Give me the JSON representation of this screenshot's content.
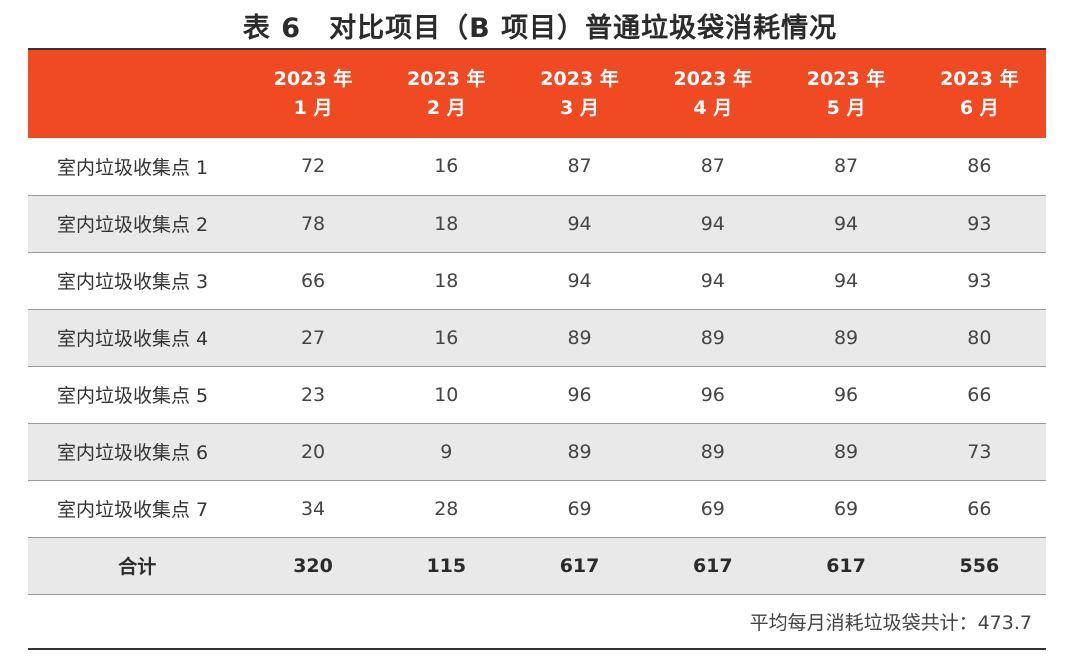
{
  "chart_data": {
    "type": "table",
    "title": "表 6　对比项目（B 项目）普通垃圾袋消耗情况",
    "columns": [
      {
        "year": "2023 年",
        "month": "1 月"
      },
      {
        "year": "2023 年",
        "month": "2 月"
      },
      {
        "year": "2023 年",
        "month": "3 月"
      },
      {
        "year": "2023 年",
        "month": "4 月"
      },
      {
        "year": "2023 年",
        "month": "5 月"
      },
      {
        "year": "2023 年",
        "month": "6 月"
      }
    ],
    "rows": [
      {
        "label": "室内垃圾收集点 1",
        "values": [
          "72",
          "16",
          "87",
          "87",
          "87",
          "86"
        ]
      },
      {
        "label": "室内垃圾收集点 2",
        "values": [
          "78",
          "18",
          "94",
          "94",
          "94",
          "93"
        ]
      },
      {
        "label": "室内垃圾收集点 3",
        "values": [
          "66",
          "18",
          "94",
          "94",
          "94",
          "93"
        ]
      },
      {
        "label": "室内垃圾收集点 4",
        "values": [
          "27",
          "16",
          "89",
          "89",
          "89",
          "80"
        ]
      },
      {
        "label": "室内垃圾收集点 5",
        "values": [
          "23",
          "10",
          "96",
          "96",
          "96",
          "66"
        ]
      },
      {
        "label": "室内垃圾收集点 6",
        "values": [
          "20",
          "9",
          "89",
          "89",
          "89",
          "73"
        ]
      },
      {
        "label": "室内垃圾收集点 7",
        "values": [
          "34",
          "28",
          "69",
          "69",
          "69",
          "66"
        ]
      }
    ],
    "total": {
      "label": "合计",
      "values": [
        "320",
        "115",
        "617",
        "617",
        "617",
        "556"
      ]
    },
    "note": "平均每月消耗垃圾袋共计：473.7",
    "header_color": "#f04a23",
    "stripe_color": "#e9e9ea"
  }
}
